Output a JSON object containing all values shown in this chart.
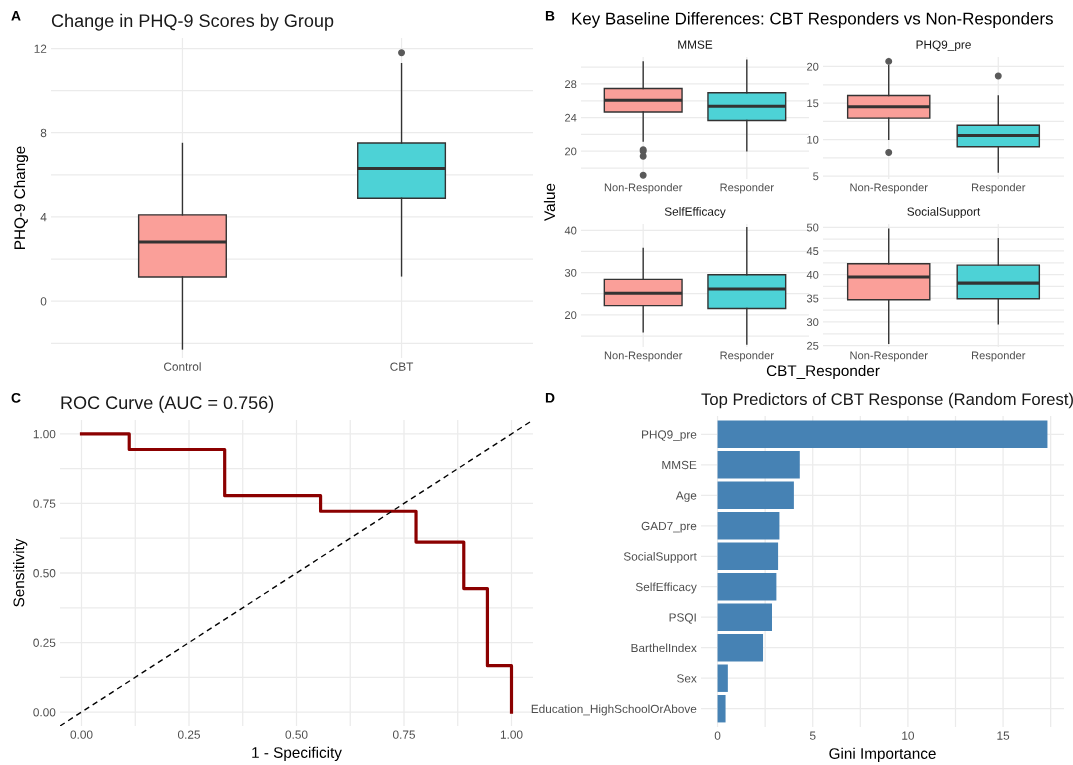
{
  "chart_data": [
    {
      "type": "box",
      "title": "Change in PHQ-9 Scores by Group",
      "ylabel": "PHQ-9 Change",
      "categories": [
        "Control",
        "CBT"
      ],
      "colors": [
        "#fa9f99",
        "#4dd2d6"
      ],
      "boxes": [
        {
          "low": -2.27,
          "q1": 1.15,
          "median": 2.81,
          "q3": 4.1,
          "high": 7.49
        },
        {
          "low": 1.2,
          "q1": 4.89,
          "median": 6.3,
          "q3": 7.51,
          "high": 11.28,
          "outliers": [
            11.8
          ]
        }
      ],
      "ylim": [
        -2.7,
        12.5
      ],
      "yticks": [
        {
          "value": -2,
          "label": null
        },
        0,
        {
          "value": 2,
          "label": null
        },
        4,
        {
          "value": 6,
          "label": null
        },
        8,
        {
          "value": 10,
          "label": null
        },
        12
      ],
      "grid": true,
      "annotations": [
        "A"
      ]
    },
    {
      "type": "box",
      "title": "MMSE",
      "categories": [
        "Non-Responder",
        "Responder"
      ],
      "colors": [
        "#fa9f99",
        "#4dd2d6"
      ],
      "boxes": [
        {
          "low": 21.22,
          "q1": 24.67,
          "median": 26.06,
          "q3": 27.45,
          "high": 30.61,
          "outliers": [
            20.17,
            20.0,
            19.41,
            17.14
          ]
        },
        {
          "low": 20.04,
          "q1": 23.66,
          "median": 25.35,
          "q3": 26.95,
          "high": 30.82
        }
      ],
      "ylim": [
        16.7,
        31.2
      ],
      "yticks": [
        {
          "value": 18,
          "label": null
        },
        20,
        {
          "value": 22,
          "label": null
        },
        24,
        {
          "value": 26,
          "label": null
        },
        28,
        {
          "value": 30,
          "label": null
        }
      ],
      "grid": true,
      "annotations": [
        "B",
        "Key Baseline Differences: CBT Responders vs Non-Responders",
        "Value",
        "CBT_Responder"
      ]
    },
    {
      "type": "box",
      "title": "PHQ9_pre",
      "categories": [
        "Non-Responder",
        "Responder"
      ],
      "colors": [
        "#fa9f99",
        "#4dd2d6"
      ],
      "boxes": [
        {
          "low": 10.05,
          "q1": 12.94,
          "median": 14.49,
          "q3": 16.03,
          "high": 20.14,
          "outliers": [
            20.7,
            8.22
          ]
        },
        {
          "low": 5.56,
          "q1": 9.02,
          "median": 10.56,
          "q3": 11.96,
          "high": 15.98,
          "outliers": [
            18.69
          ]
        }
      ],
      "ylim": [
        4.6,
        21.3
      ],
      "yticks": [
        5,
        {
          "value": 7.5,
          "label": null
        },
        10,
        {
          "value": 12.5,
          "label": null
        },
        15,
        {
          "value": 17.5,
          "label": null
        },
        20
      ],
      "grid": true
    },
    {
      "type": "box",
      "title": "SelfEfficacy",
      "categories": [
        "Non-Responder",
        "Responder"
      ],
      "colors": [
        "#fa9f99",
        "#4dd2d6"
      ],
      "boxes": [
        {
          "low": 16.0,
          "q1": 22.2,
          "median": 25.1,
          "q3": 28.4,
          "high": 35.7
        },
        {
          "low": 13.1,
          "q1": 21.5,
          "median": 26.1,
          "q3": 29.5,
          "high": 40.6
        }
      ],
      "ylim": [
        12.4,
        41.5
      ],
      "yticks": [
        {
          "value": 15,
          "label": null
        },
        20,
        {
          "value": 25,
          "label": null
        },
        30,
        {
          "value": 35,
          "label": null
        },
        40
      ],
      "grid": true
    },
    {
      "type": "box",
      "title": "SocialSupport",
      "categories": [
        "Non-Responder",
        "Responder"
      ],
      "colors": [
        "#fa9f99",
        "#4dd2d6"
      ],
      "boxes": [
        {
          "low": 25.5,
          "q1": 34.7,
          "median": 39.5,
          "q3": 42.3,
          "high": 49.6
        },
        {
          "low": 29.6,
          "q1": 34.9,
          "median": 38.2,
          "q3": 42.0,
          "high": 47.6
        }
      ],
      "ylim": [
        24.7,
        50.7
      ],
      "yticks": [
        25,
        {
          "value": 27.5,
          "label": null
        },
        30,
        {
          "value": 32.5,
          "label": null
        },
        35,
        {
          "value": 37.5,
          "label": null
        },
        40,
        {
          "value": 42.5,
          "label": null
        },
        45,
        {
          "value": 47.5,
          "label": null
        },
        50
      ],
      "grid": true
    },
    {
      "type": "line",
      "title": "ROC Curve (AUC = 0.756)",
      "xlabel": "1 - Specificity",
      "ylabel": "Sensitivity",
      "series": [
        {
          "color": "#8b0000",
          "x": [
            0,
            0.111,
            0.111,
            0.333,
            0.333,
            0.556,
            0.556,
            0.778,
            0.778,
            0.889,
            0.889,
            0.944,
            0.944,
            1.0,
            1.0
          ],
          "values": [
            1.0,
            1.0,
            0.944,
            0.944,
            0.778,
            0.778,
            0.722,
            0.722,
            0.611,
            0.611,
            0.444,
            0.444,
            0.167,
            0.167,
            0.0
          ]
        },
        {
          "color": "#000000",
          "line_style": "dashed",
          "x": [
            -0.05,
            1.05
          ],
          "values": [
            -0.05,
            1.05
          ]
        }
      ],
      "xlim": [
        -0.05,
        1.05
      ],
      "ylim": [
        -0.05,
        1.05
      ],
      "xticks": [
        {
          "value": 0,
          "label": "0.00"
        },
        {
          "value": 0.125,
          "label": null
        },
        {
          "value": 0.25,
          "label": "0.25"
        },
        {
          "value": 0.375,
          "label": null
        },
        {
          "value": 0.5,
          "label": "0.50"
        },
        {
          "value": 0.625,
          "label": null
        },
        {
          "value": 0.75,
          "label": "0.75"
        },
        {
          "value": 0.875,
          "label": null
        },
        {
          "value": 1,
          "label": "1.00"
        }
      ],
      "yticks": [
        {
          "value": 0,
          "label": "0.00"
        },
        {
          "value": 0.125,
          "label": null
        },
        {
          "value": 0.25,
          "label": "0.25"
        },
        {
          "value": 0.375,
          "label": null
        },
        {
          "value": 0.5,
          "label": "0.50"
        },
        {
          "value": 0.625,
          "label": null
        },
        {
          "value": 0.75,
          "label": "0.75"
        },
        {
          "value": 0.875,
          "label": null
        },
        {
          "value": 1,
          "label": "1.00"
        }
      ],
      "grid": true,
      "annotations": [
        "C"
      ]
    },
    {
      "type": "bar",
      "orientation": "horizontal",
      "title": "Top Predictors of CBT Response (Random Forest)",
      "xlabel": "Gini Importance",
      "categories": [
        "PHQ9_pre",
        "MMSE",
        "Age",
        "GAD7_pre",
        "SocialSupport",
        "SelfEfficacy",
        "PSQI",
        "BarthelIndex",
        "Sex",
        "Education_HighSchoolOrAbove"
      ],
      "values": [
        17.33,
        4.32,
        4.01,
        3.25,
        3.18,
        3.09,
        2.86,
        2.39,
        0.54,
        0.42
      ],
      "color": "#4682b4",
      "xlim": [
        -0.87,
        18.2
      ],
      "xticks": [
        0,
        {
          "value": 2.5,
          "label": null
        },
        5,
        {
          "value": 7.5,
          "label": null
        },
        10,
        {
          "value": 12.5,
          "label": null
        },
        15,
        {
          "value": 17.5,
          "label": null
        }
      ],
      "grid": true,
      "annotations": [
        "D"
      ]
    }
  ]
}
